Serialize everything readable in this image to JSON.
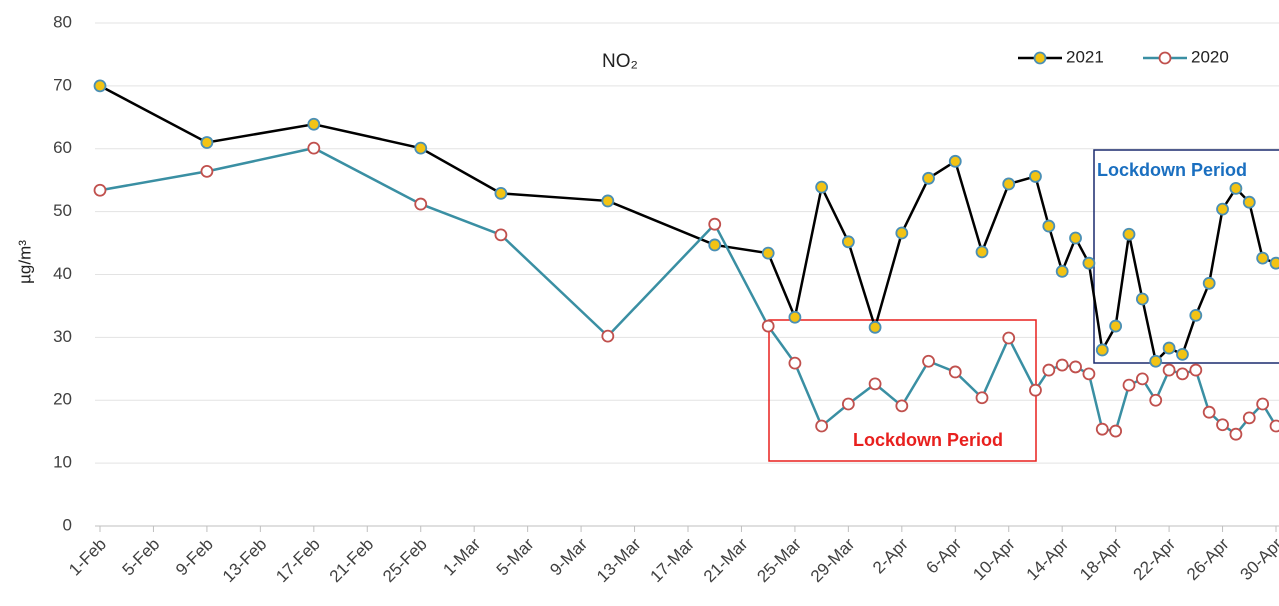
{
  "chart_data": {
    "type": "line",
    "title": "NO₂",
    "y_label": "µg/m³",
    "x": [
      "1-Feb",
      "9-Feb",
      "17-Feb",
      "25-Feb",
      "3-Mar",
      "11-Mar",
      "19-Mar",
      "23-Mar",
      "25-Mar",
      "27-Mar",
      "29-Mar",
      "31-Mar",
      "2-Apr",
      "4-Apr",
      "6-Apr",
      "8-Apr",
      "10-Apr",
      "12-Apr",
      "13-Apr",
      "14-Apr",
      "15-Apr",
      "16-Apr",
      "17-Apr",
      "18-Apr",
      "19-Apr",
      "20-Apr",
      "21-Apr",
      "22-Apr",
      "23-Apr",
      "24-Apr",
      "25-Apr",
      "26-Apr",
      "27-Apr",
      "28-Apr",
      "29-Apr",
      "30-Apr"
    ],
    "series": [
      {
        "name": "2021",
        "color": "#000000",
        "marker_fill": "#f2c314",
        "marker_edge": "#4a8fb5",
        "values": [
          70,
          61,
          63.9,
          60.1,
          52.9,
          51.7,
          44.7,
          43.4,
          33.2,
          53.9,
          45.2,
          31.6,
          46.6,
          55.3,
          58,
          43.6,
          54.4,
          55.6,
          47.7,
          40.5,
          45.8,
          41.8,
          28,
          31.8,
          46.4,
          36.1,
          26.2,
          28.3,
          27.3,
          33.5,
          38.6,
          50.4,
          53.7,
          51.5,
          42.6,
          41.8
        ]
      },
      {
        "name": "2020",
        "color": "#3a8fa3",
        "marker_fill": "#ffffff",
        "marker_edge": "#c0504d",
        "values": [
          53.4,
          56.4,
          60.1,
          51.2,
          46.3,
          30.2,
          48,
          31.8,
          25.9,
          15.9,
          19.4,
          22.6,
          19.1,
          26.2,
          24.5,
          20.4,
          29.9,
          21.6,
          24.8,
          25.6,
          25.3,
          24.2,
          15.4,
          15.1,
          22.4,
          23.4,
          20,
          24.8,
          24.2,
          24.8,
          18.1,
          16.1,
          14.6,
          17.2,
          19.4,
          15.9
        ]
      }
    ],
    "xlim": [
      "1-Feb",
      "30-Apr"
    ],
    "xticks": [
      "1-Feb",
      "5-Feb",
      "9-Feb",
      "13-Feb",
      "17-Feb",
      "21-Feb",
      "25-Feb",
      "1-Mar",
      "5-Mar",
      "9-Mar",
      "13-Mar",
      "17-Mar",
      "21-Mar",
      "25-Mar",
      "29-Mar",
      "2-Apr",
      "6-Apr",
      "10-Apr",
      "14-Apr",
      "18-Apr",
      "22-Apr",
      "26-Apr",
      "30-Apr"
    ],
    "ylim": [
      0,
      80
    ],
    "yticks": [
      0,
      10,
      20,
      30,
      40,
      50,
      60,
      70,
      80
    ],
    "grid": true,
    "legend": "upper right",
    "annotations": [
      {
        "text": "Lockdown Period",
        "color": "#e8201e"
      },
      {
        "text": "Lockdown Period",
        "color": "#1a6fc0"
      }
    ]
  }
}
